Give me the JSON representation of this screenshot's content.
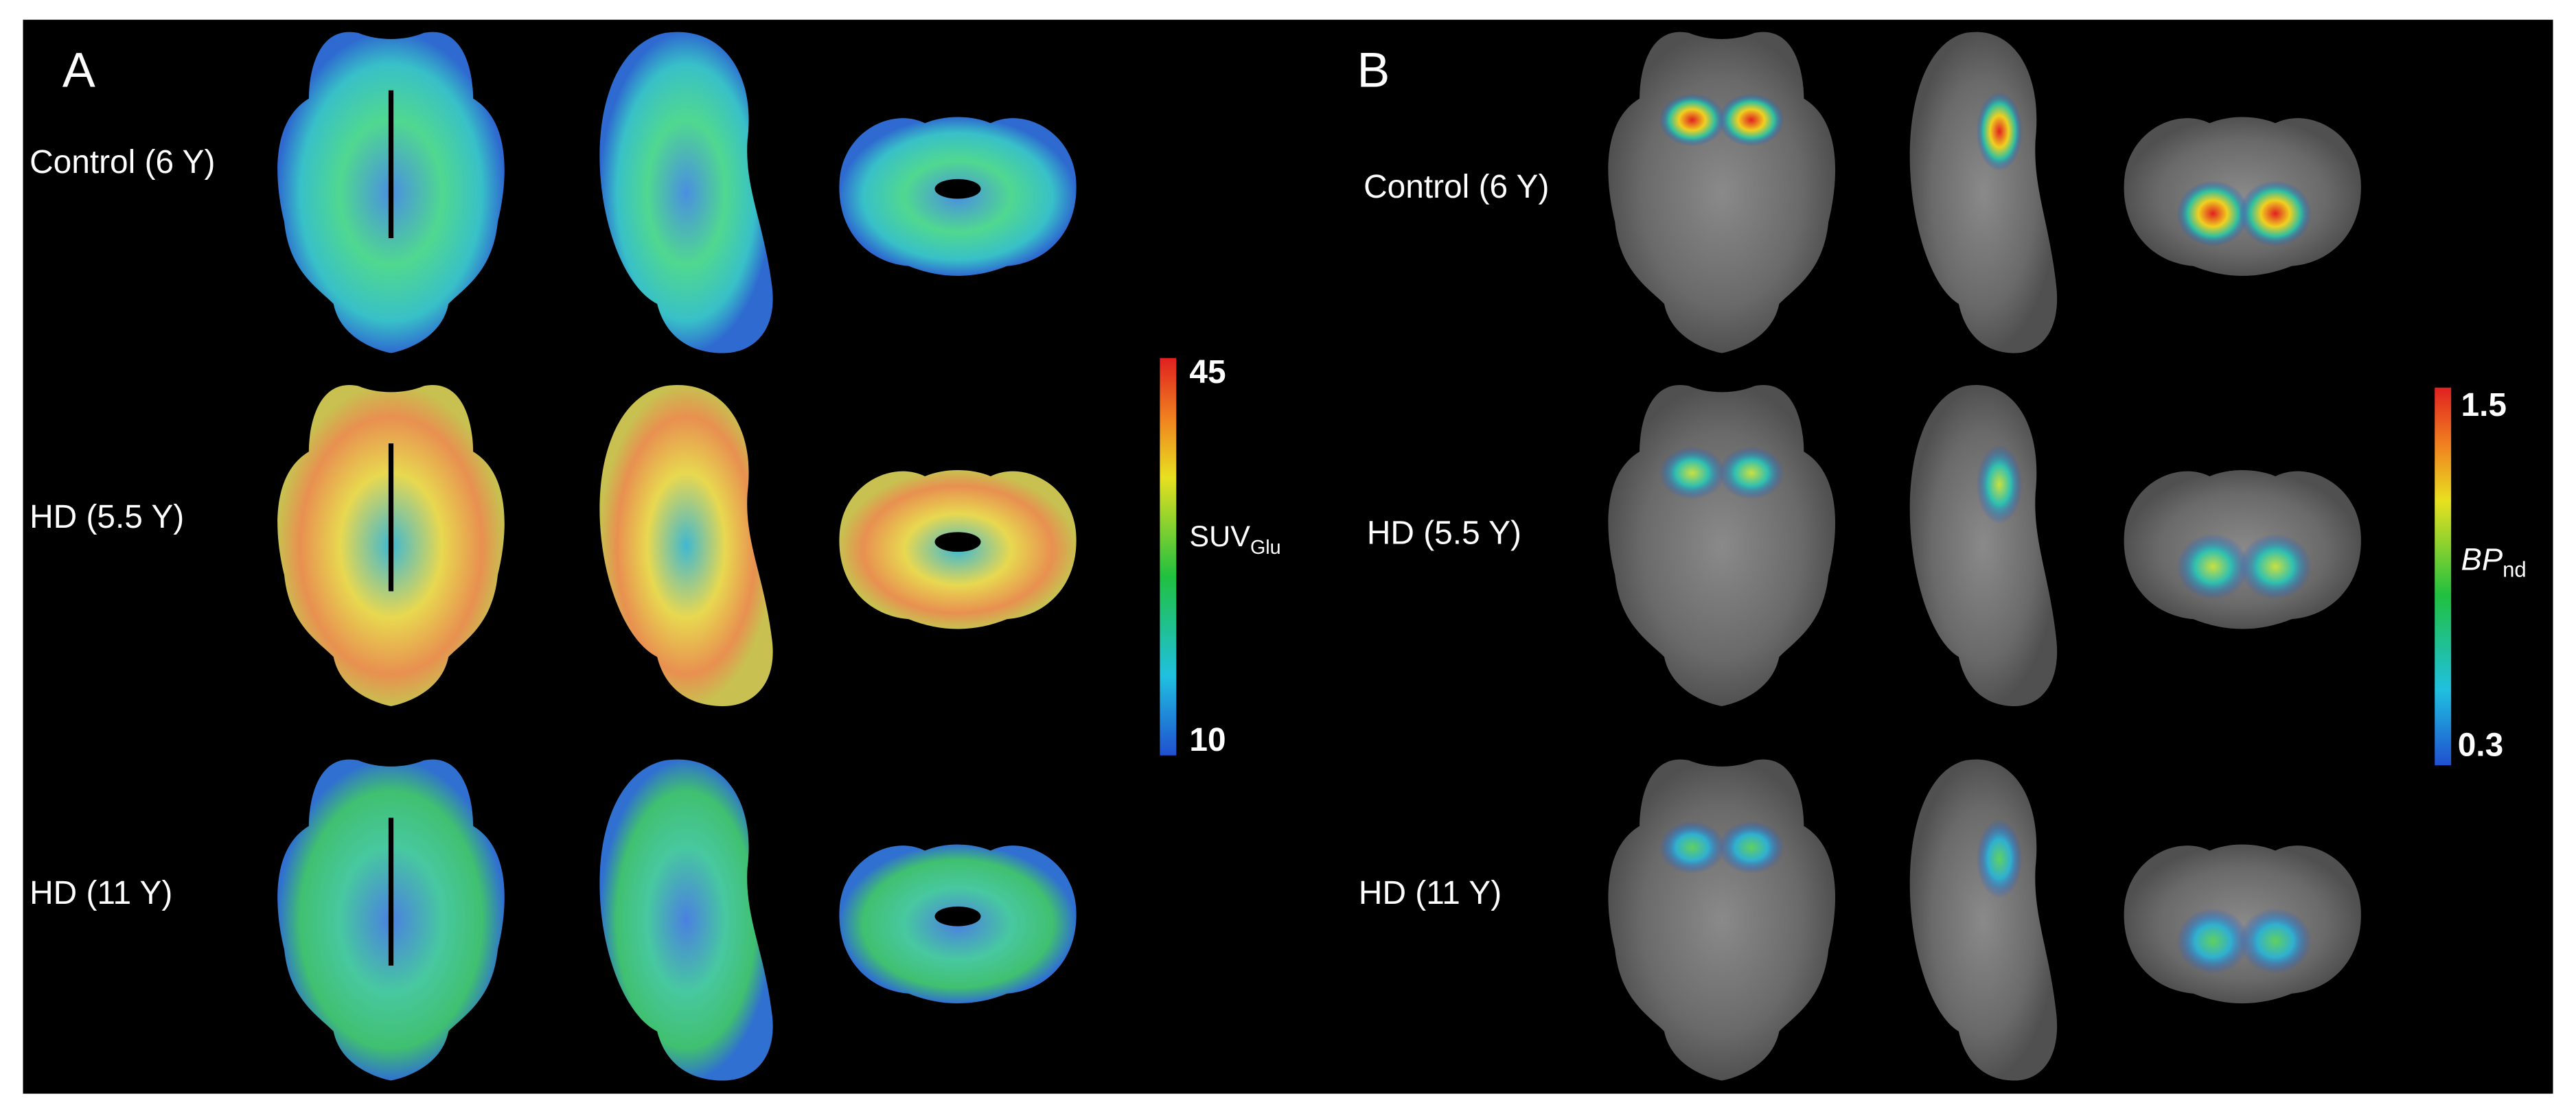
{
  "panels": [
    {
      "label": "A",
      "rows": [
        "Control (6 Y)",
        "HD (5.5 Y)",
        "HD (11 Y)"
      ],
      "colorbar": {
        "max": 45,
        "min": 10,
        "label": "SUV",
        "label_sub": "Glu"
      }
    },
    {
      "label": "B",
      "rows": [
        "Control (6 Y)",
        "HD (5.5 Y)",
        "HD (11 Y)"
      ],
      "colorbar": {
        "max": 1.5,
        "min": 0.3,
        "label": "BP",
        "label_sub": "nd"
      }
    }
  ]
}
